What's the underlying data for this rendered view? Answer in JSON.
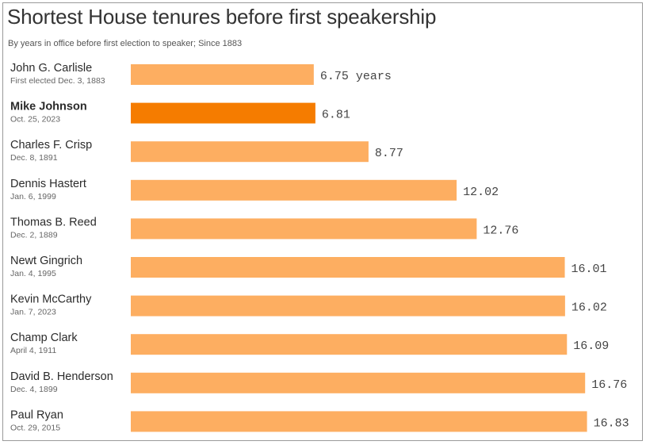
{
  "title": "Shortest House tenures before first speakership",
  "subtitle": "By years in office before first election to speaker; Since 1883",
  "colors": {
    "bar": "#fdae61",
    "highlight": "#f57c00"
  },
  "chart_data": {
    "type": "bar",
    "orientation": "horizontal",
    "title": "Shortest House tenures before first speakership",
    "subtitle": "By years in office before first election to speaker; Since 1883",
    "unit_label": "years",
    "highlight": "Mike Johnson",
    "categories": [
      "John G. Carlisle",
      "Mike Johnson",
      "Charles F. Crisp",
      "Dennis Hastert",
      "Thomas B. Reed",
      "Newt Gingrich",
      "Kevin McCarthy",
      "Champ Clark",
      "David B. Henderson",
      "Paul Ryan"
    ],
    "dates": [
      "First elected Dec. 3, 1883",
      "Oct. 25, 2023",
      "Dec. 8, 1891",
      "Jan. 6, 1999",
      "Dec. 2, 1889",
      "Jan. 4, 1995",
      "Jan. 7, 2023",
      "April 4, 1911",
      "Dec. 4, 1899",
      "Oct. 29, 2015"
    ],
    "values": [
      6.75,
      6.81,
      8.77,
      12.02,
      12.76,
      16.01,
      16.02,
      16.09,
      16.76,
      16.83
    ],
    "value_labels": [
      "6.75 years",
      "6.81",
      "8.77",
      "12.02",
      "12.76",
      "16.01",
      "16.02",
      "16.09",
      "16.76",
      "16.83"
    ]
  }
}
